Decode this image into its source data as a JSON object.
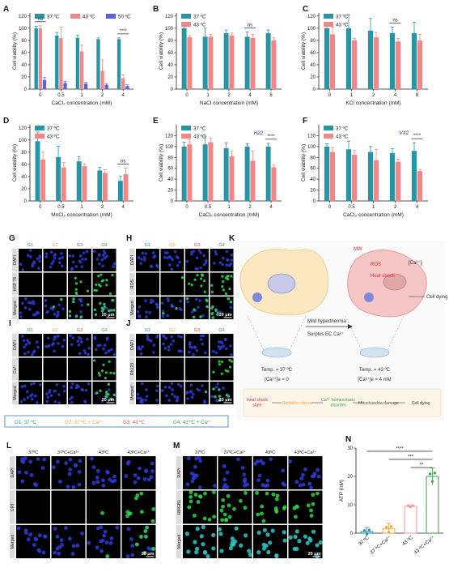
{
  "colors": {
    "c37": "#2596a6",
    "c43": "#f48785",
    "c50": "#5a62e0",
    "red": "#e02b2b",
    "green": "#3aa047",
    "orange": "#f4a23e",
    "lightred": "#f39a98"
  },
  "chart_data": [
    {
      "panel": "A",
      "type": "bar",
      "ylabel": "Cell viability (%)",
      "xlabel": "CaCl₂ concentration (mM)",
      "categories": [
        "0",
        "0.5",
        "1",
        "2",
        "4"
      ],
      "ylim": [
        0,
        125
      ],
      "yticks": [
        0,
        20,
        40,
        60,
        80,
        100,
        120
      ],
      "series": [
        {
          "name": "37 ºC",
          "color": "c37",
          "values": [
            100,
            88,
            84,
            82,
            82
          ],
          "err": [
            3,
            5,
            4,
            2,
            2
          ]
        },
        {
          "name": "43 ºC",
          "color": "c43",
          "values": [
            100,
            84,
            62,
            30,
            18
          ],
          "err": [
            4,
            18,
            10,
            18,
            5
          ]
        },
        {
          "name": "50 ºC",
          "color": "c50",
          "values": [
            15,
            10,
            9,
            7,
            5
          ],
          "err": [
            4,
            3,
            2,
            2,
            2
          ]
        }
      ],
      "sig": [
        {
          "cat": 0,
          "text": "ns"
        },
        {
          "cat": 4,
          "text": "****"
        }
      ]
    },
    {
      "panel": "B",
      "type": "bar",
      "ylabel": "Cell viability (%)",
      "xlabel": "NaCl concentration (mM)",
      "categories": [
        "0",
        "1",
        "2",
        "4",
        "8"
      ],
      "ylim": [
        0,
        125
      ],
      "yticks": [
        0,
        20,
        40,
        60,
        80,
        100,
        120
      ],
      "series": [
        {
          "name": "37 ºC",
          "color": "c37",
          "values": [
            100,
            86,
            92,
            86,
            92
          ],
          "err": [
            5,
            14,
            5,
            8,
            5
          ]
        },
        {
          "name": "43 ºC",
          "color": "c43",
          "values": [
            85,
            86,
            88,
            84,
            80
          ],
          "err": [
            3,
            4,
            4,
            6,
            4
          ]
        }
      ],
      "sig": [
        {
          "cat": 3,
          "text": "ns"
        }
      ]
    },
    {
      "panel": "C",
      "type": "bar",
      "ylabel": "Cell viability (%)",
      "xlabel": "KCl concentration (mM)",
      "categories": [
        "0",
        "1",
        "2",
        "4",
        "8"
      ],
      "ylim": [
        0,
        125
      ],
      "yticks": [
        0,
        20,
        40,
        60,
        80,
        100,
        120
      ],
      "series": [
        {
          "name": "37 ºC",
          "color": "c37",
          "values": [
            100,
            100,
            96,
            92,
            92
          ],
          "err": [
            8,
            22,
            20,
            10,
            18
          ]
        },
        {
          "name": "43 ºC",
          "color": "c43",
          "values": [
            90,
            80,
            85,
            78,
            80
          ],
          "err": [
            12,
            3,
            8,
            5,
            10
          ]
        }
      ],
      "sig": [
        {
          "cat": 3,
          "text": "ns"
        }
      ]
    },
    {
      "panel": "D",
      "type": "bar",
      "ylabel": "Cell viability (%)",
      "xlabel": "MnCl₂ concentration (mM)",
      "categories": [
        "0",
        "0.5",
        "1",
        "2",
        "4"
      ],
      "ylim": [
        0,
        125
      ],
      "yticks": [
        0,
        20,
        40,
        60,
        80,
        100,
        120
      ],
      "series": [
        {
          "name": "37 ºC",
          "color": "c37",
          "values": [
            98,
            72,
            65,
            50,
            33
          ],
          "err": [
            15,
            18,
            8,
            5,
            8
          ]
        },
        {
          "name": "43 ºC",
          "color": "c43",
          "values": [
            68,
            55,
            57,
            46,
            44
          ],
          "err": [
            12,
            8,
            4,
            5,
            10
          ]
        }
      ],
      "sig": [
        {
          "cat": 4,
          "text": "ns"
        }
      ]
    },
    {
      "panel": "E",
      "type": "bar",
      "ylabel": "Cell viability (%)",
      "xlabel": "CaCl₂ concentration (mM)",
      "annotation": "H22",
      "categories": [
        "0",
        "0.5",
        "1",
        "2",
        "4"
      ],
      "ylim": [
        0,
        140
      ],
      "yticks": [
        0,
        20,
        40,
        60,
        80,
        100,
        120
      ],
      "series": [
        {
          "name": "37 ºC",
          "color": "c37",
          "values": [
            100,
            104,
            97,
            100,
            100
          ],
          "err": [
            8,
            15,
            10,
            5,
            6
          ]
        },
        {
          "name": "43 ºC",
          "color": "c43",
          "values": [
            104,
            108,
            82,
            74,
            62
          ],
          "err": [
            8,
            8,
            10,
            18,
            4
          ]
        }
      ],
      "sig": [
        {
          "cat": 4,
          "text": "****"
        }
      ]
    },
    {
      "panel": "F",
      "type": "bar",
      "ylabel": "Cell viability (%)",
      "xlabel": "CaCl₂ concentration (mM)",
      "annotation": "VX2",
      "categories": [
        "0",
        "0.5",
        "1",
        "2",
        "4"
      ],
      "ylim": [
        0,
        140
      ],
      "yticks": [
        0,
        20,
        40,
        60,
        80,
        100,
        120
      ],
      "series": [
        {
          "name": "37 ºC",
          "color": "c37",
          "values": [
            100,
            95,
            90,
            88,
            92
          ],
          "err": [
            5,
            15,
            10,
            8,
            15
          ]
        },
        {
          "name": "43 ºC",
          "color": "c43",
          "values": [
            90,
            85,
            75,
            72,
            55
          ],
          "err": [
            8,
            8,
            20,
            5,
            3
          ]
        }
      ],
      "sig": [
        {
          "cat": 4,
          "text": "****"
        }
      ]
    },
    {
      "panel": "N",
      "type": "bar",
      "ylabel": "ATP (nM)",
      "ylim": [
        0,
        30
      ],
      "yticks": [
        0,
        10,
        20,
        30
      ],
      "categories": [
        "37 ºC",
        "37 ºC+Ca²⁺",
        "43 ºC",
        "43 ºC+Ca²⁺"
      ],
      "values": [
        0.5,
        1.5,
        9.5,
        20
      ],
      "err": [
        1.5,
        2,
        0.5,
        3
      ],
      "colors": [
        "c37",
        "orange",
        "lightred",
        "green"
      ],
      "sig": [
        {
          "from": 0,
          "to": 3,
          "text": "****"
        },
        {
          "from": 1,
          "to": 3,
          "text": "***"
        },
        {
          "from": 2,
          "to": 3,
          "text": "**"
        }
      ]
    }
  ],
  "micro": {
    "G": {
      "cols": [
        "G1",
        "G2",
        "G3",
        "G4"
      ],
      "rows": [
        "DAPI",
        "HSP 70",
        "Merged"
      ],
      "scale": "20 μm"
    },
    "H": {
      "cols": [
        "G1",
        "G2",
        "G3",
        "G4"
      ],
      "rows": [
        "DAPI",
        "ROS",
        "Merged"
      ],
      "scale": "20 μm"
    },
    "I": {
      "cols": [
        "G1",
        "G2",
        "G3",
        "G4"
      ],
      "rows": [
        "DAPI",
        "Ca²⁺",
        "Merged"
      ],
      "scale": "20 μm"
    },
    "J": {
      "cols": [
        "G1",
        "G2",
        "G3",
        "G4"
      ],
      "rows": [
        "DAPI",
        "Rh123",
        "Merged"
      ],
      "scale": "20 μm"
    },
    "L": {
      "cols": [
        "37ºC",
        "37ºC+Ca²⁺",
        "43ºC",
        "43ºC+Ca²⁺"
      ],
      "rows": [
        "DAPI",
        "CRT",
        "Merged"
      ],
      "scale": "20 μm"
    },
    "M": {
      "cols": [
        "37ºC",
        "37ºC+Ca²⁺",
        "43ºC",
        "43ºC+Ca²⁺"
      ],
      "rows": [
        "DAPI",
        "HMGB1",
        "Merged"
      ],
      "scale": "20 μm"
    }
  },
  "group_legend": [
    "G1: 37 ºC",
    "G2: 37 ºC + Ca²⁺",
    "G3: 43 ºC",
    "G4: 43 ºC + Ca²⁺"
  ],
  "schematic": {
    "mw": "MW",
    "ros": "ROS",
    "ca_in": "[Ca²⁺]ᵢ",
    "hsp": "Heat shock",
    "cell_dying": "Cell dying",
    "mild": "Mild hyperthermia",
    "surplus": "Surplus EC Ca²⁺",
    "temp_left": "Temp. = 37 ºC",
    "ca_left": "[Ca²⁺]e = 0",
    "temp_right": "Temp. = 43 ºC",
    "ca_right": "[Ca²⁺]e = 4 mM",
    "flow": [
      "Heat shock state",
      "Oxidative stress",
      "Ca²⁺ homeostasis disorder",
      "Mitochondria damage",
      "Cell dying"
    ]
  }
}
